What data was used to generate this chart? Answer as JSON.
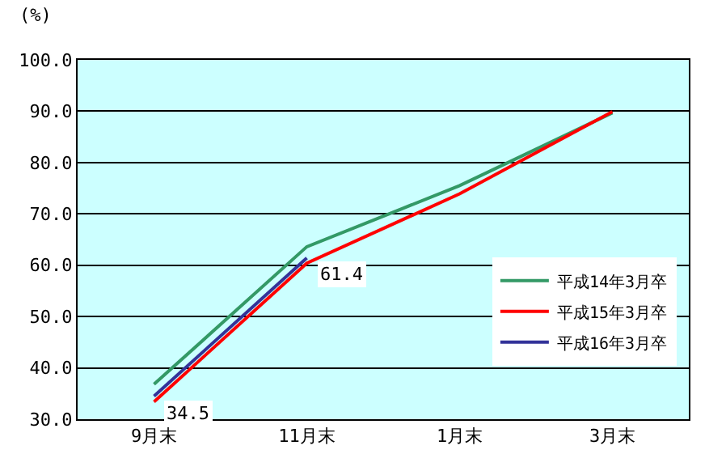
{
  "chart_data": {
    "type": "line",
    "ylabel": "(%)",
    "categories": [
      "9月末",
      "11月末",
      "1月末",
      "3月末"
    ],
    "series": [
      {
        "name": "平成14年3月卒",
        "color": "#339966",
        "values": [
          36.8,
          63.6,
          75.5,
          89.7
        ]
      },
      {
        "name": "平成15年3月卒",
        "color": "#ff0000",
        "values": [
          33.4,
          60.4,
          73.9,
          89.9
        ]
      },
      {
        "name": "平成16年3月卒",
        "color": "#333399",
        "values": [
          34.5,
          61.4,
          null,
          null
        ],
        "value_labels": [
          "34.5",
          "61.4",
          null,
          null
        ]
      }
    ],
    "ylim": [
      30,
      100
    ],
    "yticks": [
      {
        "value": 30,
        "label": "30.0"
      },
      {
        "value": 40,
        "label": "40.0"
      },
      {
        "value": 50,
        "label": "50.0"
      },
      {
        "value": 60,
        "label": "60.0"
      },
      {
        "value": 70,
        "label": "70.0"
      },
      {
        "value": 80,
        "label": "80.0"
      },
      {
        "value": 90,
        "label": "90.0"
      },
      {
        "value": 100,
        "label": "100.0"
      }
    ],
    "grid": "y",
    "legend": "bottom right",
    "marker": "none",
    "line_style": "solid"
  }
}
